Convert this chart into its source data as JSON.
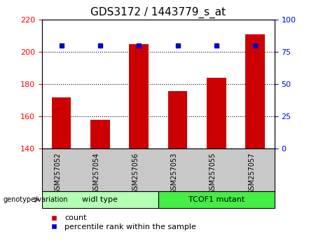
{
  "title": "GDS3172 / 1443779_s_at",
  "samples": [
    "GSM257052",
    "GSM257054",
    "GSM257056",
    "GSM257053",
    "GSM257055",
    "GSM257057"
  ],
  "counts": [
    172,
    158,
    205,
    176,
    184,
    211
  ],
  "percentile_ranks": [
    80,
    80,
    80,
    80,
    80,
    80
  ],
  "ylim_left": [
    140,
    220
  ],
  "ylim_right": [
    0,
    100
  ],
  "yticks_left": [
    140,
    160,
    180,
    200,
    220
  ],
  "yticks_right": [
    0,
    25,
    50,
    75,
    100
  ],
  "bar_color": "#cc0000",
  "dot_color": "#0000cc",
  "group1_label": "widl type",
  "group2_label": "TCOF1 mutant",
  "group1_indices": [
    0,
    1,
    2
  ],
  "group2_indices": [
    3,
    4,
    5
  ],
  "group1_color": "#b3ffb3",
  "group2_color": "#44ee44",
  "genotype_label": "genotype/variation",
  "legend_count": "count",
  "legend_percentile": "percentile rank within the sample",
  "sample_area_color": "#c8c8c8",
  "bar_width": 0.5,
  "title_fontsize": 11,
  "tick_fontsize": 8,
  "label_fontsize": 8
}
